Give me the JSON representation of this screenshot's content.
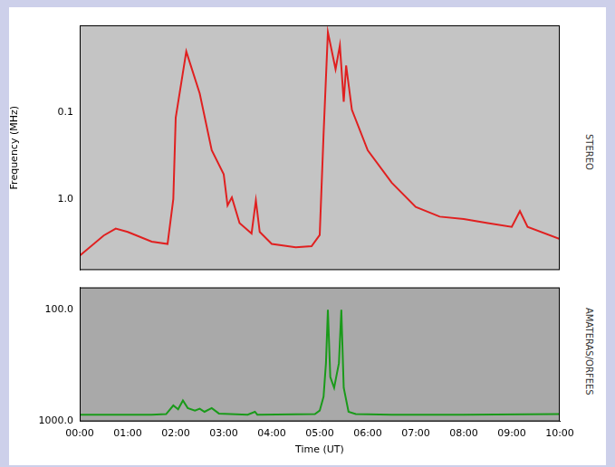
{
  "chart_data": [
    {
      "type": "line",
      "ylabel": "Frequency (MHz)",
      "annotations": [
        "STEREO"
      ],
      "log": "y",
      "grid": false,
      "tick_labels": "y",
      "xlim": [
        0,
        10
      ],
      "xticks": [
        {
          "value": 0,
          "label": "00:00"
        },
        {
          "value": 1,
          "label": "01:00"
        },
        {
          "value": 2,
          "label": "02:00"
        },
        {
          "value": 3,
          "label": "03:00"
        },
        {
          "value": 4,
          "label": "04:00"
        },
        {
          "value": 5,
          "label": "05:00"
        },
        {
          "value": 6,
          "label": "06:00"
        },
        {
          "value": 7,
          "label": "07:00"
        },
        {
          "value": 8,
          "label": "08:00"
        },
        {
          "value": 9,
          "label": "09:00"
        },
        {
          "value": 10,
          "label": "10:00"
        }
      ],
      "ylim": [
        0.01,
        6.6
      ],
      "yticks": [
        0.1,
        {
          "value": 1,
          "label": "1.0"
        }
      ],
      "x": [
        0,
        0.5,
        0.75,
        1,
        1.5,
        1.83,
        1.95,
        2,
        2.22,
        2.5,
        2.75,
        3,
        3.08,
        3.17,
        3.33,
        3.58,
        3.67,
        3.75,
        4,
        4.5,
        4.83,
        5,
        5.08,
        5.17,
        5.33,
        5.42,
        5.5,
        5.55,
        5.67,
        6,
        6.5,
        7,
        7.5,
        8,
        8.5,
        9,
        9.17,
        9.33,
        10
      ],
      "series": [
        {
          "color": "#e02020",
          "values": [
            4.5,
            2.64,
            2.2,
            2.4,
            3.1,
            3.3,
            1.0,
            0.116,
            0.02,
            0.061,
            0.275,
            0.52,
            1.19,
            0.96,
            1.9,
            2.5,
            1.04,
            2.4,
            3.3,
            3.6,
            3.5,
            2.6,
            0.18,
            0.012,
            0.032,
            0.017,
            0.076,
            0.029,
            0.094,
            0.275,
            0.65,
            1.24,
            1.6,
            1.7,
            1.9,
            2.1,
            1.38,
            2.1,
            2.9
          ]
        }
      ]
    },
    {
      "type": "line",
      "xlabel": "Time (UT)",
      "annotations": [
        "AMATERAS/ORFEES"
      ],
      "log": "y",
      "grid": false,
      "xlim": [
        0,
        10
      ],
      "xticks": [
        {
          "value": 0,
          "label": "00:00"
        },
        {
          "value": 1,
          "label": "01:00"
        },
        {
          "value": 2,
          "label": "02:00"
        },
        {
          "value": 3,
          "label": "03:00"
        },
        {
          "value": 4,
          "label": "04:00"
        },
        {
          "value": 5,
          "label": "05:00"
        },
        {
          "value": 6,
          "label": "06:00"
        },
        {
          "value": 7,
          "label": "07:00"
        },
        {
          "value": 8,
          "label": "08:00"
        },
        {
          "value": 9,
          "label": "09:00"
        },
        {
          "value": 10,
          "label": "10:00"
        }
      ],
      "ylim": [
        63,
        1000
      ],
      "yticks": [
        {
          "value": 100,
          "label": "100.0"
        },
        {
          "value": 1000,
          "label": "1000.0"
        }
      ],
      "x": [
        0,
        1.5,
        1.8,
        1.95,
        2.05,
        2.15,
        2.25,
        2.4,
        2.5,
        2.6,
        2.75,
        2.9,
        3.5,
        3.65,
        3.7,
        4.9,
        5,
        5.08,
        5.13,
        5.17,
        5.22,
        5.3,
        5.4,
        5.45,
        5.5,
        5.6,
        5.75,
        6.5,
        8,
        10
      ],
      "series": [
        {
          "color": "#1a9a1a",
          "values": [
            870,
            870,
            860,
            720,
            780,
            650,
            760,
            800,
            770,
            820,
            760,
            850,
            870,
            820,
            870,
            860,
            800,
            600,
            300,
            100,
            400,
            500,
            300,
            100,
            500,
            820,
            860,
            870,
            870,
            860
          ]
        }
      ]
    }
  ]
}
